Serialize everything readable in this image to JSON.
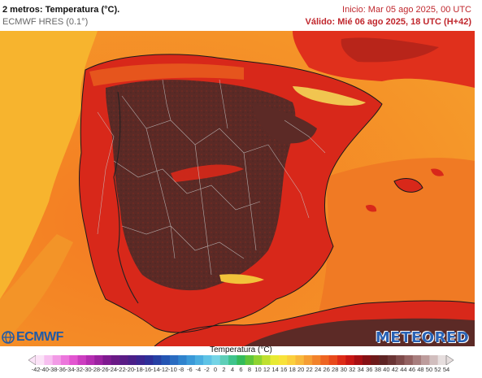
{
  "header": {
    "title": "2 metros: Temperatura (°C).",
    "model": "ECMWF HRES (0.1°)",
    "init": "Inicio: Mar 05 ago 2025, 00 UTC",
    "valid": "Válido: Mié 06 ago 2025, 18 UTC (H+42)"
  },
  "logos": {
    "left": "ECMWF",
    "right": "METEORED"
  },
  "colorbar": {
    "title": "Temperatura (°C)",
    "ticks": [
      "-42",
      "-40",
      "-38",
      "-36",
      "-34",
      "-32",
      "-30",
      "-28",
      "-26",
      "-24",
      "-22",
      "-20",
      "-18",
      "-16",
      "-14",
      "-12",
      "-10",
      "-8",
      "-6",
      "-4",
      "-2",
      "0",
      "2",
      "4",
      "6",
      "8",
      "10",
      "12",
      "14",
      "16",
      "18",
      "20",
      "22",
      "24",
      "26",
      "28",
      "30",
      "32",
      "34",
      "36",
      "38",
      "40",
      "42",
      "44",
      "46",
      "48",
      "50",
      "52",
      "54"
    ],
    "colors": [
      "#fbe3f7",
      "#f7bff0",
      "#f29ae6",
      "#ec76dc",
      "#e255d0",
      "#cc3ec0",
      "#b52db1",
      "#9b22a0",
      "#7f1a90",
      "#6a1a86",
      "#5a1c86",
      "#4a1f88",
      "#3c2590",
      "#2e2e98",
      "#2640a4",
      "#2455b3",
      "#2a6cc1",
      "#2f83cd",
      "#3a99d8",
      "#4aaee0",
      "#5ec3e6",
      "#74d4e6",
      "#5ecfb8",
      "#3fc48c",
      "#34bb5a",
      "#5fc63a",
      "#8fd431",
      "#bfe02f",
      "#e8ea33",
      "#f8e23a",
      "#fbcf3c",
      "#f8b83b",
      "#f59d33",
      "#f2822a",
      "#ee6522",
      "#e8491b",
      "#dd2b17",
      "#c81613",
      "#a80e12",
      "#861014",
      "#6e1a1a",
      "#5e2424",
      "#6a3434",
      "#7e4a4a",
      "#946262",
      "#a87e7e",
      "#bd9c9c",
      "#d1bebe",
      "#e6dede"
    ]
  },
  "map": {
    "description_colors": {
      "sea": "#f59a2a",
      "land_warm": "#d8281a",
      "land_hot": "#5c2a26",
      "sea_cool": "#f7b42e"
    }
  }
}
